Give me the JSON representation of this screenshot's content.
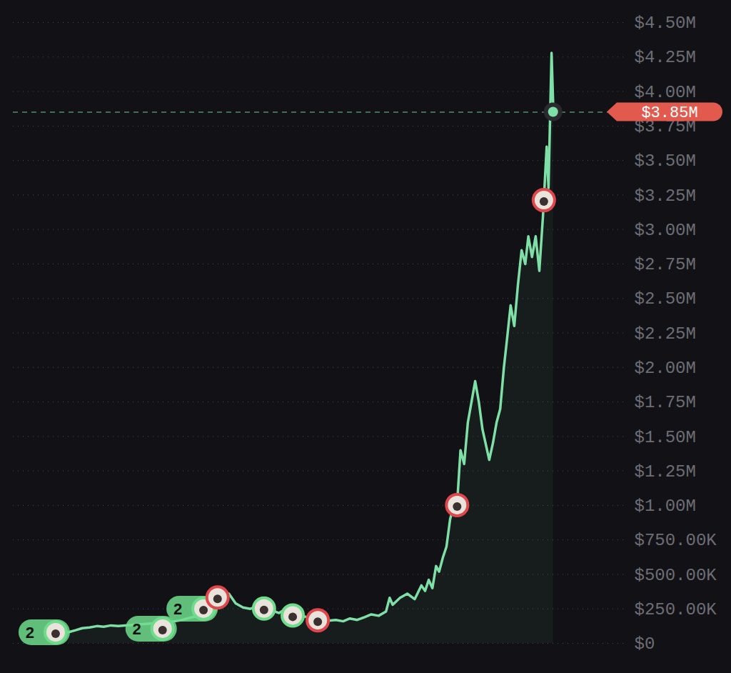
{
  "chart_data": {
    "type": "line",
    "color": "#7fe0a7",
    "grid": true,
    "tick_labels": "y",
    "xlim": [
      0,
      1000
    ],
    "ylim": [
      0,
      4500000
    ],
    "yticks": [
      {
        "value": 0,
        "label": "$0"
      },
      {
        "value": 250000,
        "label": "$250.00K"
      },
      {
        "value": 500000,
        "label": "$500.00K"
      },
      {
        "value": 750000,
        "label": "$750.00K"
      },
      {
        "value": 1000000,
        "label": "$1.00M"
      },
      {
        "value": 1250000,
        "label": "$1.25M"
      },
      {
        "value": 1500000,
        "label": "$1.50M"
      },
      {
        "value": 1750000,
        "label": "$1.75M"
      },
      {
        "value": 2000000,
        "label": "$2.00M"
      },
      {
        "value": 2250000,
        "label": "$2.25M"
      },
      {
        "value": 2500000,
        "label": "$2.50M"
      },
      {
        "value": 2750000,
        "label": "$2.75M"
      },
      {
        "value": 3000000,
        "label": "$3.00M"
      },
      {
        "value": 3250000,
        "label": "$3.25M"
      },
      {
        "value": 3500000,
        "label": "$3.50M"
      },
      {
        "value": 3750000,
        "label": "$3.75M"
      },
      {
        "value": 4000000,
        "label": "$4.00M"
      },
      {
        "value": 4250000,
        "label": "$4.25M"
      },
      {
        "value": 4500000,
        "label": "$4.50M"
      }
    ],
    "x": [
      90,
      102,
      113,
      125,
      137,
      148,
      160,
      172,
      183,
      213,
      248,
      271,
      294,
      318,
      329,
      341,
      353,
      364,
      376,
      388,
      400,
      411,
      423,
      435,
      446,
      458,
      470,
      481,
      499,
      516,
      528,
      540,
      551,
      563,
      575,
      586,
      598,
      610,
      616,
      621,
      633,
      645,
      657,
      668,
      674,
      680,
      686,
      692,
      697,
      703,
      709,
      715,
      721,
      727,
      732,
      738,
      744,
      750,
      756,
      762,
      768,
      773,
      779,
      785,
      791,
      797,
      803,
      808,
      814,
      820,
      826,
      832,
      838,
      843,
      849,
      855,
      861,
      867,
      873,
      876,
      881,
      884
    ],
    "values": [
      80000,
      95000,
      110000,
      115000,
      125000,
      120000,
      130000,
      125000,
      130000,
      140000,
      150000,
      165000,
      190000,
      210000,
      230000,
      300000,
      360000,
      290000,
      260000,
      250000,
      270000,
      230000,
      240000,
      220000,
      250000,
      230000,
      200000,
      190000,
      170000,
      165000,
      170000,
      160000,
      180000,
      170000,
      190000,
      210000,
      200000,
      230000,
      330000,
      280000,
      330000,
      360000,
      320000,
      420000,
      380000,
      460000,
      400000,
      560000,
      520000,
      620000,
      700000,
      900000,
      1000000,
      1050000,
      1400000,
      1300000,
      1600000,
      1750000,
      1900000,
      1750000,
      1550000,
      1450000,
      1330000,
      1450000,
      1600000,
      1700000,
      2000000,
      2200000,
      2450000,
      2300000,
      2600000,
      2850000,
      2750000,
      2950000,
      2800000,
      2950000,
      2700000,
      3100000,
      3600000,
      3300000,
      4280000,
      3850000
    ],
    "markers": [
      {
        "x": 70,
        "y": 78000,
        "side": "buy",
        "count": 2
      },
      {
        "x": 245,
        "y": 104000,
        "side": "buy",
        "count": 2
      },
      {
        "x": 312,
        "y": 249000,
        "side": "buy",
        "count": 2
      },
      {
        "x": 335,
        "y": 330000,
        "side": "sell"
      },
      {
        "x": 411,
        "y": 250000,
        "side": "buy"
      },
      {
        "x": 458,
        "y": 200000,
        "side": "buy"
      },
      {
        "x": 499,
        "y": 165000,
        "side": "sell"
      },
      {
        "x": 727,
        "y": 1000000,
        "side": "sell"
      },
      {
        "x": 869,
        "y": 3210000,
        "side": "sell"
      }
    ],
    "current": {
      "value": 3850000,
      "label": "$3.85M"
    }
  }
}
